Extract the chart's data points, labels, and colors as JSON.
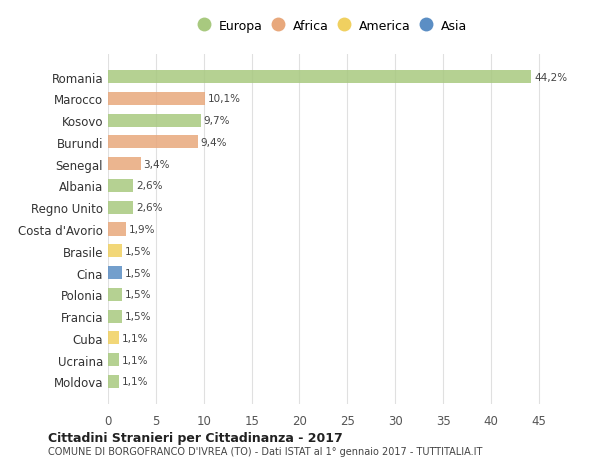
{
  "countries": [
    "Romania",
    "Marocco",
    "Kosovo",
    "Burundi",
    "Senegal",
    "Albania",
    "Regno Unito",
    "Costa d'Avorio",
    "Brasile",
    "Cina",
    "Polonia",
    "Francia",
    "Cuba",
    "Ucraina",
    "Moldova"
  ],
  "values": [
    44.2,
    10.1,
    9.7,
    9.4,
    3.4,
    2.6,
    2.6,
    1.9,
    1.5,
    1.5,
    1.5,
    1.5,
    1.1,
    1.1,
    1.1
  ],
  "labels": [
    "44,2%",
    "10,1%",
    "9,7%",
    "9,4%",
    "3,4%",
    "2,6%",
    "2,6%",
    "1,9%",
    "1,5%",
    "1,5%",
    "1,5%",
    "1,5%",
    "1,1%",
    "1,1%",
    "1,1%"
  ],
  "continents": [
    "Europa",
    "Africa",
    "Europa",
    "Africa",
    "Africa",
    "Europa",
    "Europa",
    "Africa",
    "America",
    "Asia",
    "Europa",
    "Europa",
    "America",
    "Europa",
    "Europa"
  ],
  "colors": {
    "Europa": "#a8c97f",
    "Africa": "#e8a87c",
    "America": "#f0d060",
    "Asia": "#5b8ec4"
  },
  "legend_order": [
    "Europa",
    "Africa",
    "America",
    "Asia"
  ],
  "title1": "Cittadini Stranieri per Cittadinanza - 2017",
  "title2": "COMUNE DI BORGOFRANCO D'IVREA (TO) - Dati ISTAT al 1° gennaio 2017 - TUTTITALIA.IT",
  "xlim": [
    0,
    47
  ],
  "xticks": [
    0,
    5,
    10,
    15,
    20,
    25,
    30,
    35,
    40,
    45
  ],
  "bg_color": "#ffffff",
  "grid_color": "#e0e0e0"
}
